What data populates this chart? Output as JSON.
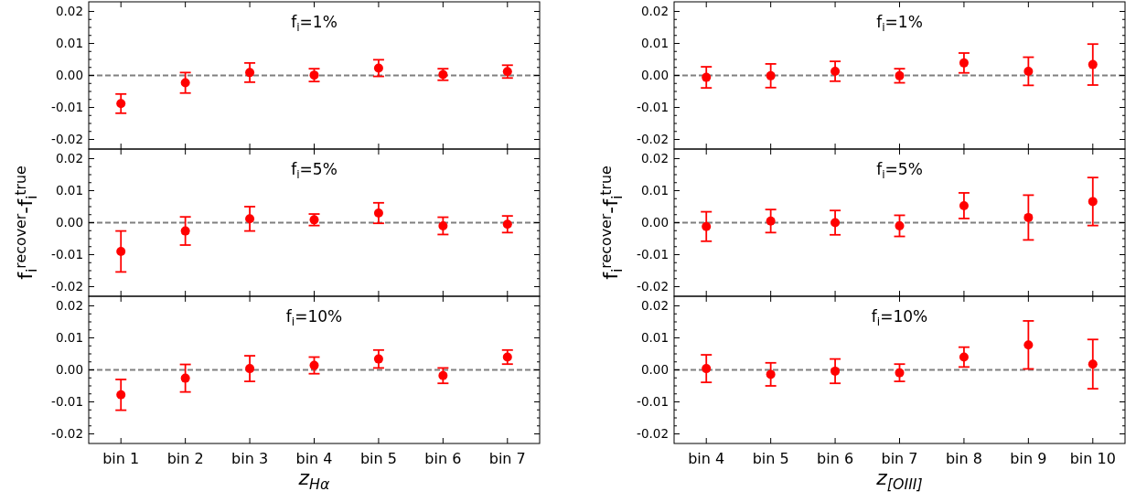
{
  "chart_data": [
    {
      "type": "scatter",
      "title": "f$_{i}$=1%",
      "categories": [
        null,
        null,
        null,
        null,
        null,
        null,
        null
      ],
      "tick_labels": "y",
      "marker": "circle",
      "grid": false,
      "series": [
        {
          "color": "#ff0000",
          "values": [
            -0.0088,
            -0.0023,
            0.0009,
            0.0001,
            0.0023,
            0.0003,
            0.0012
          ],
          "errors": [
            0.003,
            0.0032,
            0.003,
            0.002,
            0.0026,
            0.0018,
            0.002
          ]
        }
      ],
      "ylim": [
        -0.023,
        0.023
      ],
      "yticks": [
        {
          "value": -0.02,
          "label": "-0.02"
        },
        {
          "value": -0.0175,
          "label": null
        },
        {
          "value": -0.015,
          "label": null
        },
        {
          "value": -0.0125,
          "label": null
        },
        {
          "value": -0.01,
          "label": "-0.01"
        },
        {
          "value": -0.0075,
          "label": null
        },
        {
          "value": -0.005,
          "label": null
        },
        {
          "value": -0.0025,
          "label": null
        },
        {
          "value": 0,
          "label": "0.00"
        },
        {
          "value": 0.0025,
          "label": null
        },
        {
          "value": 0.005,
          "label": null
        },
        {
          "value": 0.0075,
          "label": null
        },
        {
          "value": 0.01,
          "label": "0.01"
        },
        {
          "value": 0.0125,
          "label": null
        },
        {
          "value": 0.015,
          "label": null
        },
        {
          "value": 0.0175,
          "label": null
        },
        {
          "value": 0.02,
          "label": "0.02"
        }
      ],
      "ref_lines": [
        {
          "axis": "y",
          "value": 0,
          "color": "#808080",
          "line_style": "dashed"
        }
      ]
    },
    {
      "type": "scatter",
      "title": "f$_{i}$=5%",
      "ylabel": "f$_{i}$$^{recover}$-f$_{i}$$^{true}$",
      "categories": [
        null,
        null,
        null,
        null,
        null,
        null,
        null
      ],
      "tick_labels": "y",
      "marker": "circle",
      "grid": false,
      "series": [
        {
          "color": "#ff0000",
          "values": [
            -0.009,
            -0.0026,
            0.0012,
            0.0009,
            0.003,
            -0.001,
            -0.0005
          ],
          "errors": [
            0.0064,
            0.0044,
            0.0038,
            0.0018,
            0.0032,
            0.0027,
            0.0026
          ]
        }
      ],
      "ylim": [
        -0.023,
        0.023
      ],
      "yticks": [
        {
          "value": -0.02,
          "label": "-0.02"
        },
        {
          "value": -0.0175,
          "label": null
        },
        {
          "value": -0.015,
          "label": null
        },
        {
          "value": -0.0125,
          "label": null
        },
        {
          "value": -0.01,
          "label": "-0.01"
        },
        {
          "value": -0.0075,
          "label": null
        },
        {
          "value": -0.005,
          "label": null
        },
        {
          "value": -0.0025,
          "label": null
        },
        {
          "value": 0,
          "label": "0.00"
        },
        {
          "value": 0.0025,
          "label": null
        },
        {
          "value": 0.005,
          "label": null
        },
        {
          "value": 0.0075,
          "label": null
        },
        {
          "value": 0.01,
          "label": "0.01"
        },
        {
          "value": 0.0125,
          "label": null
        },
        {
          "value": 0.015,
          "label": null
        },
        {
          "value": 0.0175,
          "label": null
        },
        {
          "value": 0.02,
          "label": "0.02"
        }
      ],
      "ref_lines": [
        {
          "axis": "y",
          "value": 0,
          "color": "#808080",
          "line_style": "dashed"
        }
      ]
    },
    {
      "type": "scatter",
      "title": "f$_{i}$=10%",
      "xlabel": "z$_{Hα}$",
      "categories": [
        "bin 1",
        "bin 2",
        "bin 3",
        "bin 4",
        "bin 5",
        "bin 6",
        "bin 7"
      ],
      "marker": "circle",
      "grid": false,
      "series": [
        {
          "color": "#ff0000",
          "values": [
            -0.0078,
            -0.0026,
            0.0004,
            0.0014,
            0.0034,
            -0.0018,
            0.004
          ],
          "errors": [
            0.0048,
            0.0043,
            0.004,
            0.0026,
            0.0028,
            0.0024,
            0.0022
          ]
        }
      ],
      "ylim": [
        -0.023,
        0.023
      ],
      "yticks": [
        {
          "value": -0.02,
          "label": "-0.02"
        },
        {
          "value": -0.0175,
          "label": null
        },
        {
          "value": -0.015,
          "label": null
        },
        {
          "value": -0.0125,
          "label": null
        },
        {
          "value": -0.01,
          "label": "-0.01"
        },
        {
          "value": -0.0075,
          "label": null
        },
        {
          "value": -0.005,
          "label": null
        },
        {
          "value": -0.0025,
          "label": null
        },
        {
          "value": 0,
          "label": "0.00"
        },
        {
          "value": 0.0025,
          "label": null
        },
        {
          "value": 0.005,
          "label": null
        },
        {
          "value": 0.0075,
          "label": null
        },
        {
          "value": 0.01,
          "label": "0.01"
        },
        {
          "value": 0.0125,
          "label": null
        },
        {
          "value": 0.015,
          "label": null
        },
        {
          "value": 0.0175,
          "label": null
        },
        {
          "value": 0.02,
          "label": "0.02"
        }
      ],
      "ref_lines": [
        {
          "axis": "y",
          "value": 0,
          "color": "#808080",
          "line_style": "dashed"
        }
      ]
    },
    {
      "type": "scatter",
      "title": "f$_{i}$=1%",
      "categories": [
        null,
        null,
        null,
        null,
        null,
        null,
        null
      ],
      "tick_labels": "y",
      "marker": "circle",
      "grid": false,
      "series": [
        {
          "color": "#ff0000",
          "values": [
            -0.0006,
            -0.0001,
            0.0013,
            -0.0001,
            0.0039,
            0.0013,
            0.0034
          ],
          "errors": [
            0.0033,
            0.0037,
            0.0031,
            0.0022,
            0.0031,
            0.0044,
            0.0064
          ]
        }
      ],
      "ylim": [
        -0.023,
        0.023
      ],
      "yticks": [
        {
          "value": -0.02,
          "label": "-0.02"
        },
        {
          "value": -0.0175,
          "label": null
        },
        {
          "value": -0.015,
          "label": null
        },
        {
          "value": -0.0125,
          "label": null
        },
        {
          "value": -0.01,
          "label": "-0.01"
        },
        {
          "value": -0.0075,
          "label": null
        },
        {
          "value": -0.005,
          "label": null
        },
        {
          "value": -0.0025,
          "label": null
        },
        {
          "value": 0,
          "label": "0.00"
        },
        {
          "value": 0.0025,
          "label": null
        },
        {
          "value": 0.005,
          "label": null
        },
        {
          "value": 0.0075,
          "label": null
        },
        {
          "value": 0.01,
          "label": "0.01"
        },
        {
          "value": 0.0125,
          "label": null
        },
        {
          "value": 0.015,
          "label": null
        },
        {
          "value": 0.0175,
          "label": null
        },
        {
          "value": 0.02,
          "label": "0.02"
        }
      ],
      "ref_lines": [
        {
          "axis": "y",
          "value": 0,
          "color": "#808080",
          "line_style": "dashed"
        }
      ]
    },
    {
      "type": "scatter",
      "title": "f$_{i}$=5%",
      "ylabel": "f$_{i}$$^{recover}$-f$_{i}$$^{true}$",
      "categories": [
        null,
        null,
        null,
        null,
        null,
        null,
        null
      ],
      "tick_labels": "y",
      "marker": "circle",
      "grid": false,
      "series": [
        {
          "color": "#ff0000",
          "values": [
            -0.0012,
            0.0005,
            0.0,
            -0.001,
            0.0053,
            0.0016,
            0.0066
          ],
          "errors": [
            0.0046,
            0.0036,
            0.0038,
            0.0033,
            0.004,
            0.007,
            0.0075
          ]
        }
      ],
      "ylim": [
        -0.023,
        0.023
      ],
      "yticks": [
        {
          "value": -0.02,
          "label": "-0.02"
        },
        {
          "value": -0.0175,
          "label": null
        },
        {
          "value": -0.015,
          "label": null
        },
        {
          "value": -0.0125,
          "label": null
        },
        {
          "value": -0.01,
          "label": "-0.01"
        },
        {
          "value": -0.0075,
          "label": null
        },
        {
          "value": -0.005,
          "label": null
        },
        {
          "value": -0.0025,
          "label": null
        },
        {
          "value": 0,
          "label": "0.00"
        },
        {
          "value": 0.0025,
          "label": null
        },
        {
          "value": 0.005,
          "label": null
        },
        {
          "value": 0.0075,
          "label": null
        },
        {
          "value": 0.01,
          "label": "0.01"
        },
        {
          "value": 0.0125,
          "label": null
        },
        {
          "value": 0.015,
          "label": null
        },
        {
          "value": 0.0175,
          "label": null
        },
        {
          "value": 0.02,
          "label": "0.02"
        }
      ],
      "ref_lines": [
        {
          "axis": "y",
          "value": 0,
          "color": "#808080",
          "line_style": "dashed"
        }
      ]
    },
    {
      "type": "scatter",
      "title": "f$_{i}$=10%",
      "xlabel": "z$_{[OIII]}$",
      "categories": [
        "bin 4",
        "bin 5",
        "bin 6",
        "bin 7",
        "bin 8",
        "bin 9",
        "bin 10"
      ],
      "marker": "circle",
      "grid": false,
      "series": [
        {
          "color": "#ff0000",
          "values": [
            0.0004,
            -0.0014,
            -0.0004,
            -0.0009,
            0.004,
            0.0078,
            0.0018
          ],
          "errors": [
            0.0043,
            0.0036,
            0.0038,
            0.0027,
            0.0031,
            0.0075,
            0.0077
          ]
        }
      ],
      "ylim": [
        -0.023,
        0.023
      ],
      "yticks": [
        {
          "value": -0.02,
          "label": "-0.02"
        },
        {
          "value": -0.0175,
          "label": null
        },
        {
          "value": -0.015,
          "label": null
        },
        {
          "value": -0.0125,
          "label": null
        },
        {
          "value": -0.01,
          "label": "-0.01"
        },
        {
          "value": -0.0075,
          "label": null
        },
        {
          "value": -0.005,
          "label": null
        },
        {
          "value": -0.0025,
          "label": null
        },
        {
          "value": 0,
          "label": "0.00"
        },
        {
          "value": 0.0025,
          "label": null
        },
        {
          "value": 0.005,
          "label": null
        },
        {
          "value": 0.0075,
          "label": null
        },
        {
          "value": 0.01,
          "label": "0.01"
        },
        {
          "value": 0.0125,
          "label": null
        },
        {
          "value": 0.015,
          "label": null
        },
        {
          "value": 0.0175,
          "label": null
        },
        {
          "value": 0.02,
          "label": "0.02"
        }
      ],
      "ref_lines": [
        {
          "axis": "y",
          "value": 0,
          "color": "#808080",
          "line_style": "dashed"
        }
      ]
    }
  ]
}
